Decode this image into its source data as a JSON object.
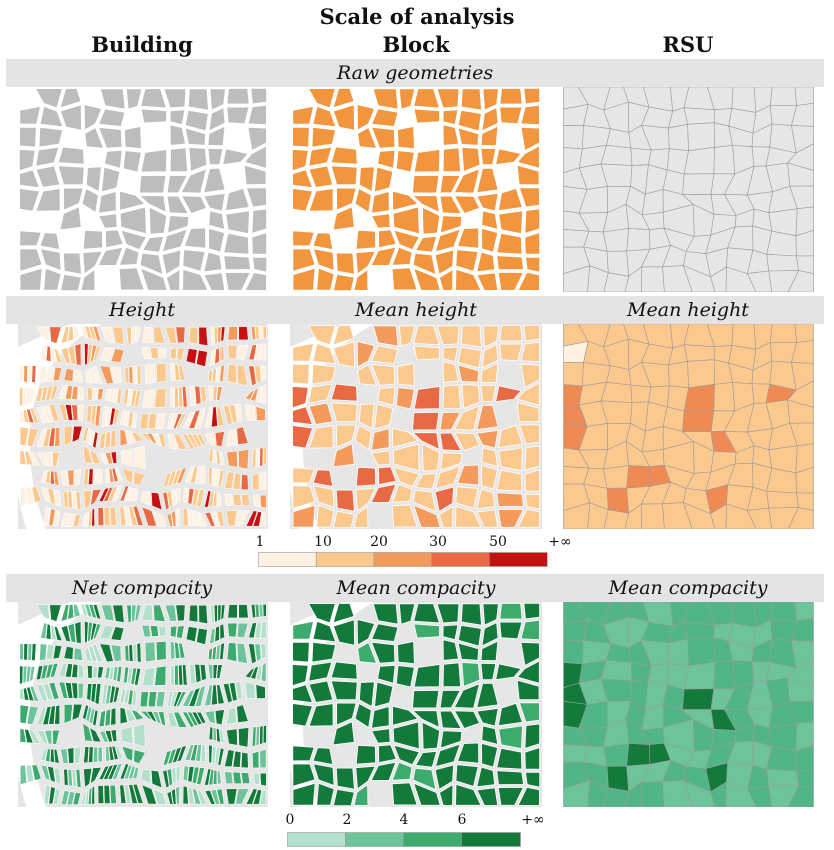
{
  "title": "Scale of analysis",
  "columns": [
    "Building",
    "Block",
    "RSU"
  ],
  "rows": [
    {
      "labels": [
        "Raw geometries"
      ]
    },
    {
      "labels": [
        "Height",
        "Mean height",
        "Mean height"
      ]
    },
    {
      "labels": [
        "Net compacity",
        "Mean compacity",
        "Mean compacity"
      ]
    }
  ],
  "height_legend": {
    "ticks": [
      "1",
      "10",
      "20",
      "30",
      "50",
      "+∞"
    ],
    "colors": [
      "#fef1e2",
      "#fbc98e",
      "#f39a5c",
      "#e86a45",
      "#c41111"
    ]
  },
  "compacity_legend": {
    "ticks": [
      "0",
      "2",
      "4",
      "6",
      "+∞"
    ],
    "colors": [
      "#b3e0cb",
      "#6dc39a",
      "#3daa6e",
      "#137a3c"
    ]
  },
  "colors": {
    "band": "#e4e4e4",
    "background": "#e6e6e6",
    "building_gray": "#bdbdbd",
    "block_orange": "#f1953f",
    "rsu_line": "#9c9c9c"
  }
}
